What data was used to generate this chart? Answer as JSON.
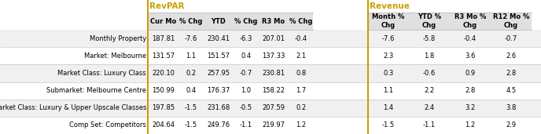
{
  "revpar_title": "RevPAR",
  "revenue_title": "Revenue",
  "title_color": "#C8A000",
  "row_labels": [
    "Monthly Property",
    "Market: Melbourne",
    "Market Class: Luxury Class",
    "Submarket: Melbourne Centre",
    "Submarket Class: Luxury & Upper Upscale Classes",
    "Comp Set: Competitors"
  ],
  "revpar_headers": [
    "Cur Mo",
    "% Chg",
    "YTD",
    "% Chg",
    "R3 Mo",
    "% Chg"
  ],
  "revenue_headers": [
    "Month %\nChg",
    "YTD %\nChg",
    "R3 Mo %\nChg",
    "R12 Mo %\nChg"
  ],
  "revpar_data": [
    [
      "187.81",
      "-7.6",
      "230.41",
      "-6.3",
      "207.01",
      "-0.4"
    ],
    [
      "131.57",
      "1.1",
      "151.57",
      "0.4",
      "137.33",
      "2.1"
    ],
    [
      "220.10",
      "0.2",
      "257.95",
      "-0.7",
      "230.81",
      "0.8"
    ],
    [
      "150.99",
      "0.4",
      "176.37",
      "1.0",
      "158.22",
      "1.7"
    ],
    [
      "197.85",
      "-1.5",
      "231.68",
      "-0.5",
      "207.59",
      "0.2"
    ],
    [
      "204.64",
      "-1.5",
      "249.76",
      "-1.1",
      "219.97",
      "1.2"
    ]
  ],
  "revenue_data": [
    [
      "-7.6",
      "-5.8",
      "-0.4",
      "-0.7"
    ],
    [
      "2.3",
      "1.8",
      "3.6",
      "2.6"
    ],
    [
      "0.3",
      "-0.6",
      "0.9",
      "2.8"
    ],
    [
      "1.1",
      "2.2",
      "2.8",
      "4.5"
    ],
    [
      "1.4",
      "2.4",
      "3.2",
      "3.8"
    ],
    [
      "-1.5",
      "-1.1",
      "1.2",
      "2.9"
    ]
  ],
  "bg_color": "#ffffff",
  "row_alt_bg": "#f0f0f0",
  "row_bg": "#ffffff",
  "header_bg": "#e0e0e0",
  "divider_color": "#C8A000",
  "text_color": "#000000",
  "line_color": "#bbbbbb",
  "font_size": 6.0,
  "header_font_size": 6.0,
  "title_font_size": 7.5,
  "label_font_size": 6.0,
  "figw": 6.88,
  "figh": 1.71,
  "dpi": 100
}
